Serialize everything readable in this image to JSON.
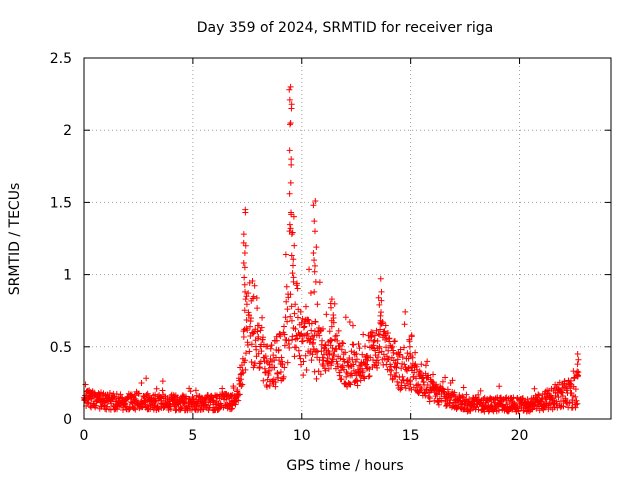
{
  "chart_data": {
    "type": "scatter",
    "title": "Day 359 of 2024, SRMTID for receiver riga",
    "xlabel": "GPS time / hours",
    "ylabel": "SRMTID / TECUs",
    "xlim": [
      0,
      24.2
    ],
    "ylim": [
      0,
      2.5
    ],
    "x_ticks": [
      0,
      5,
      10,
      15,
      20
    ],
    "y_ticks": [
      0,
      0.5,
      1,
      1.5,
      2,
      2.5
    ],
    "y_tick_labels": [
      "0",
      "0.5",
      "1",
      "1.5",
      "2",
      "2.5"
    ],
    "x_tick_labels": [
      "0",
      "5",
      "10",
      "15",
      "20"
    ],
    "grid": true,
    "marker": "+",
    "color": "#ff0000",
    "profile": [
      {
        "x": 0.0,
        "base": 0.15,
        "spread": 0.12
      },
      {
        "x": 1.0,
        "base": 0.12,
        "spread": 0.12
      },
      {
        "x": 3.0,
        "base": 0.12,
        "spread": 0.12
      },
      {
        "x": 5.0,
        "base": 0.11,
        "spread": 0.1
      },
      {
        "x": 7.0,
        "base": 0.12,
        "spread": 0.12
      },
      {
        "x": 7.3,
        "base": 0.4,
        "spread": 0.35
      },
      {
        "x": 7.5,
        "base": 0.75,
        "spread": 0.65
      },
      {
        "x": 7.9,
        "base": 0.6,
        "spread": 0.55
      },
      {
        "x": 8.5,
        "base": 0.35,
        "spread": 0.3
      },
      {
        "x": 9.2,
        "base": 0.45,
        "spread": 0.4
      },
      {
        "x": 9.5,
        "base": 1.1,
        "spread": 1.2
      },
      {
        "x": 9.9,
        "base": 0.5,
        "spread": 0.4
      },
      {
        "x": 10.5,
        "base": 0.55,
        "spread": 0.55
      },
      {
        "x": 10.9,
        "base": 0.45,
        "spread": 0.35
      },
      {
        "x": 11.4,
        "base": 0.55,
        "spread": 0.35
      },
      {
        "x": 12.0,
        "base": 0.35,
        "spread": 0.3
      },
      {
        "x": 13.0,
        "base": 0.4,
        "spread": 0.3
      },
      {
        "x": 13.6,
        "base": 0.55,
        "spread": 0.35
      },
      {
        "x": 14.5,
        "base": 0.35,
        "spread": 0.3
      },
      {
        "x": 15.0,
        "base": 0.35,
        "spread": 0.3
      },
      {
        "x": 16.0,
        "base": 0.18,
        "spread": 0.15
      },
      {
        "x": 17.5,
        "base": 0.1,
        "spread": 0.1
      },
      {
        "x": 20.5,
        "base": 0.1,
        "spread": 0.1
      },
      {
        "x": 21.5,
        "base": 0.14,
        "spread": 0.15
      },
      {
        "x": 22.7,
        "base": 0.2,
        "spread": 0.25
      }
    ],
    "peaks": [
      {
        "x": 7.4,
        "values": [
          1.45,
          1.43,
          1.28,
          1.22,
          1.2,
          1.15,
          1.08,
          1.05,
          0.98,
          0.93,
          0.88,
          0.85
        ]
      },
      {
        "x": 9.5,
        "values": [
          2.3,
          2.28,
          2.21,
          2.18,
          2.05,
          2.04,
          1.86,
          1.8,
          1.76,
          1.56,
          1.43,
          1.32,
          1.28
        ]
      },
      {
        "x": 9.6,
        "values": [
          1.01,
          0.95,
          0.78,
          0.73,
          0.68,
          0.63
        ]
      },
      {
        "x": 10.6,
        "values": [
          1.51,
          1.48,
          1.37,
          1.3,
          1.19,
          1.15,
          1.1,
          1.06,
          1.02,
          0.95,
          0.88
        ]
      },
      {
        "x": 11.4,
        "values": [
          0.83,
          0.8,
          0.77,
          0.72,
          0.68,
          0.64
        ]
      },
      {
        "x": 13.6,
        "values": [
          0.88,
          0.84,
          0.79,
          0.74,
          0.68,
          0.62
        ]
      },
      {
        "x": 15.0,
        "values": [
          0.58,
          0.55,
          0.5,
          0.45
        ]
      },
      {
        "x": 22.7,
        "values": [
          0.45,
          0.41,
          0.38,
          0.33
        ]
      }
    ],
    "x_end": 22.7,
    "point_count": 1600
  }
}
